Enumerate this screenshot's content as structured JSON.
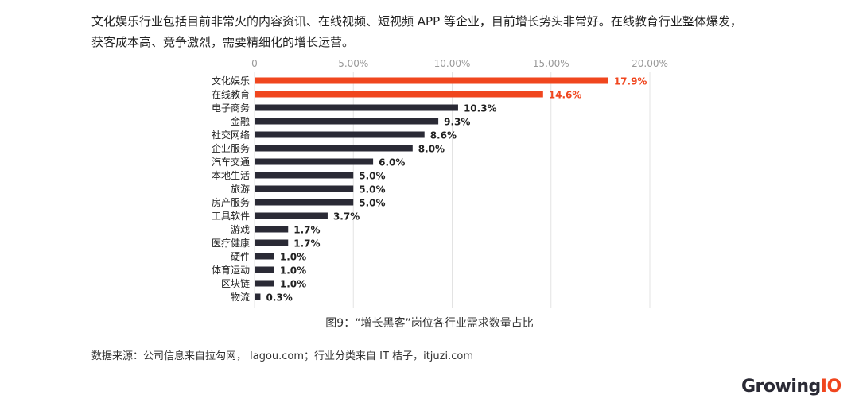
{
  "intro": {
    "line1": "文化娱乐行业包括目前非常火的内容资讯、在线视频、短视频 APP 等企业，目前增长势头非常好。在线教育行业整体爆发，",
    "line2": "获客成本高、竞争激烈，需要精细化的增长运营。"
  },
  "caption": "图9：“增长黑客”岗位各行业需求数量占比",
  "source": "数据来源：公司信息来自拉勾网， lagou.com；行业分类来自 IT 桔子，itjuzi.com",
  "logo": {
    "main": "Growing",
    "accent": "IO"
  },
  "chart_data": {
    "type": "bar",
    "orientation": "horizontal",
    "title": "",
    "xlabel": "",
    "ylabel": "",
    "xlim": [
      0,
      20
    ],
    "xticks": [
      0,
      5,
      10,
      15,
      20
    ],
    "xtick_labels": [
      "0",
      "5.00%",
      "10.00%",
      "15.00%",
      "20.00%"
    ],
    "grid": true,
    "categories": [
      "文化娱乐",
      "在线教育",
      "电子商务",
      "金融",
      "社交网络",
      "企业服务",
      "汽车交通",
      "本地生活",
      "旅游",
      "房产服务",
      "工具软件",
      "游戏",
      "医疗健康",
      "硬件",
      "体育运动",
      "区块链",
      "物流"
    ],
    "values": [
      17.9,
      14.6,
      10.3,
      9.3,
      8.6,
      8.0,
      6.0,
      5.0,
      5.0,
      5.0,
      3.7,
      1.7,
      1.7,
      1.0,
      1.0,
      1.0,
      0.3
    ],
    "labels": [
      "17.9%",
      "14.6%",
      "10.3%",
      "9.3%",
      "8.6%",
      "8.0%",
      "6.0%",
      "5.0%",
      "5.0%",
      "5.0%",
      "3.7%",
      "1.7%",
      "1.7%",
      "1.0%",
      "1.0%",
      "1.0%",
      "0.3%"
    ],
    "highlight_count": 2,
    "colors": {
      "highlight": "#f0461e",
      "default": "#2a2a35",
      "grid": "#e3e3e3",
      "tick": "#999999"
    }
  }
}
